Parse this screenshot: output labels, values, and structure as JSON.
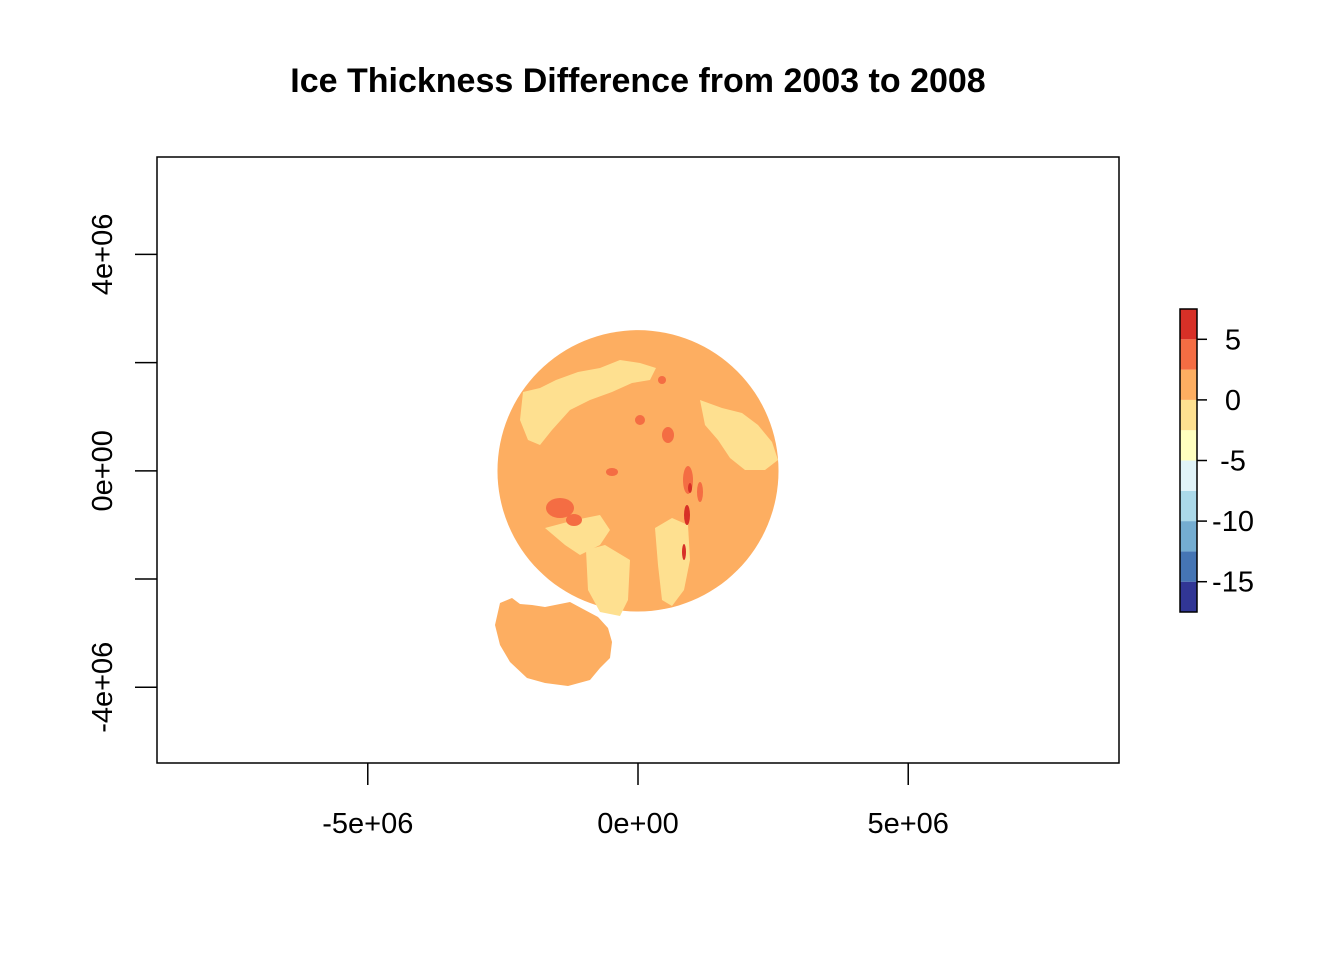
{
  "chart_data": {
    "type": "heatmap",
    "title": "Ice Thickness Difference from 2003 to 2008",
    "xlabel": "",
    "ylabel": "",
    "xlim": [
      -8900000,
      8900000
    ],
    "ylim": [
      -5400000,
      5800000
    ],
    "x_ticks": [
      {
        "value": -5000000,
        "label": "-5e+06"
      },
      {
        "value": 0,
        "label": "0e+00"
      },
      {
        "value": 5000000,
        "label": "5e+06"
      }
    ],
    "y_ticks": [
      {
        "value": -4000000,
        "label": "-4e+06",
        "labeled": true
      },
      {
        "value": -2000000,
        "label": "",
        "labeled": false
      },
      {
        "value": 0,
        "label": "0e+00",
        "labeled": true
      },
      {
        "value": 2000000,
        "label": "",
        "labeled": false
      },
      {
        "value": 4000000,
        "label": "4e+06",
        "labeled": true
      }
    ],
    "grid": false,
    "legend": {
      "position": "right",
      "breaks": [
        -17.5,
        -15,
        -12.5,
        -10,
        -7.5,
        -5,
        -2.5,
        0,
        2.5,
        5,
        7.5
      ],
      "colors": [
        "#313695",
        "#4575b4",
        "#74add1",
        "#abd9e9",
        "#e0f3f8",
        "#ffffbf",
        "#fee090",
        "#fdae61",
        "#f46d43",
        "#d73027",
        "#a50026"
      ],
      "tick_labels": [
        {
          "value": 5,
          "label": "5"
        },
        {
          "value": 0,
          "label": "0"
        },
        {
          "value": -5,
          "label": "-5"
        },
        {
          "value": -10,
          "label": "-10"
        },
        {
          "value": -15,
          "label": "-15"
        }
      ]
    },
    "regions": [
      {
        "name": "main-disc",
        "value_bin": "0 to 2.5",
        "color": "#fdae61",
        "center": [
          0,
          0
        ],
        "radius": 2600000
      },
      {
        "name": "lower-lobe",
        "value_bin": "0 to 2.5",
        "color": "#fdae61"
      },
      {
        "name": "thinning-areas",
        "value_bin": "-2.5 to 0",
        "color": "#fee090"
      },
      {
        "name": "thickening-spots",
        "value_bin": "2.5 to 5",
        "color": "#f46d43"
      },
      {
        "name": "strong-thickening-spots",
        "value_bin": "5 to 7.5",
        "color": "#d73027"
      }
    ]
  }
}
